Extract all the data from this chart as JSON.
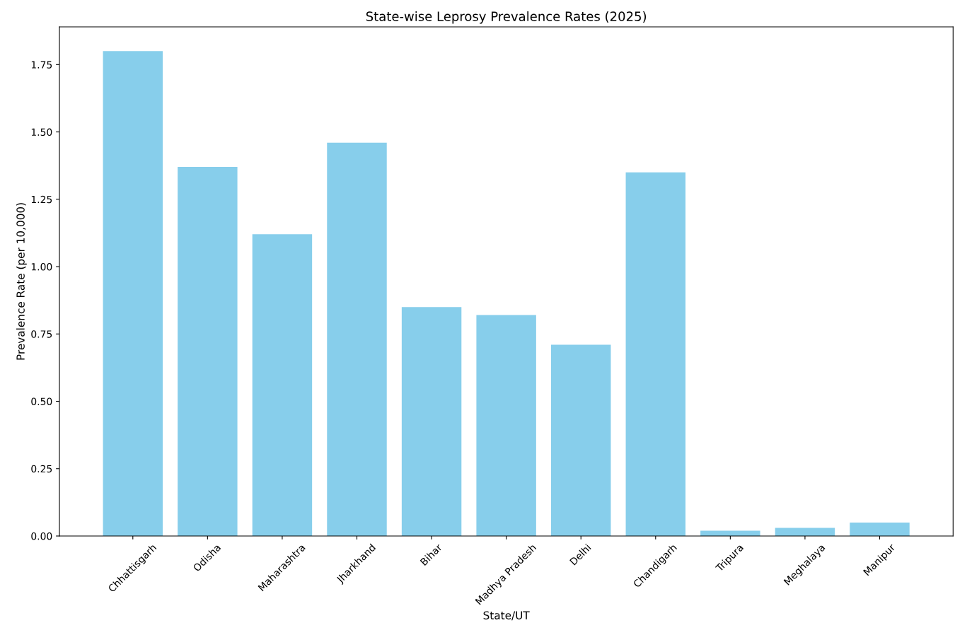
{
  "chart_data": {
    "type": "bar",
    "title": "State-wise Leprosy Prevalence Rates (2025)",
    "xlabel": "State/UT",
    "ylabel": "Prevalence Rate (per 10,000)",
    "categories": [
      "Chhattisgarh",
      "Odisha",
      "Maharashtra",
      "Jharkhand",
      "Bihar",
      "Madhya Pradesh",
      "Delhi",
      "Chandigarh",
      "Tripura",
      "Meghalaya",
      "Manipur"
    ],
    "values": [
      1.8,
      1.37,
      1.12,
      1.46,
      0.85,
      0.82,
      0.71,
      1.35,
      0.02,
      0.03,
      0.05
    ],
    "color": "#87ceeb",
    "ylim": [
      0,
      1.89
    ],
    "yticks": [
      {
        "value": 0,
        "label": "0.00"
      },
      {
        "value": 0.25,
        "label": "0.25"
      },
      {
        "value": 0.5,
        "label": "0.50"
      },
      {
        "value": 0.75,
        "label": "0.75"
      },
      {
        "value": 1.0,
        "label": "1.00"
      },
      {
        "value": 1.25,
        "label": "1.25"
      },
      {
        "value": 1.5,
        "label": "1.50"
      },
      {
        "value": 1.75,
        "label": "1.75"
      }
    ],
    "grid": false,
    "legend": false
  }
}
